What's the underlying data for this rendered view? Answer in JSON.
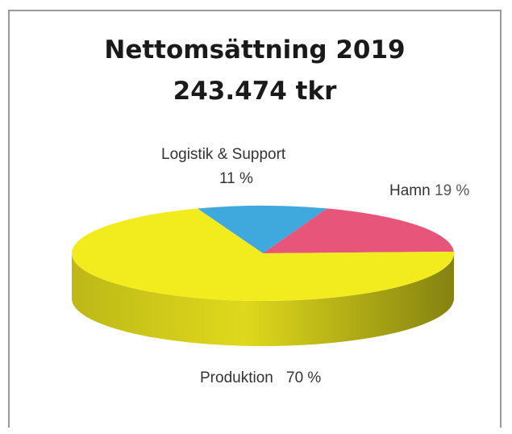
{
  "chart_data": {
    "type": "pie",
    "title": "Nettomsättning 2019",
    "subtitle": "243.474 tkr",
    "slices": [
      {
        "name": "Logistik & Support",
        "percent_label": "11 %",
        "value": 11,
        "color": "#3fa8dc"
      },
      {
        "name": "Hamn",
        "percent_label": "19 %",
        "value": 19,
        "color": "#e8557a"
      },
      {
        "name": "Produktion",
        "percent_label": "70 %",
        "value": 70,
        "color": "#f2ec1e"
      }
    ],
    "style": "3d"
  }
}
